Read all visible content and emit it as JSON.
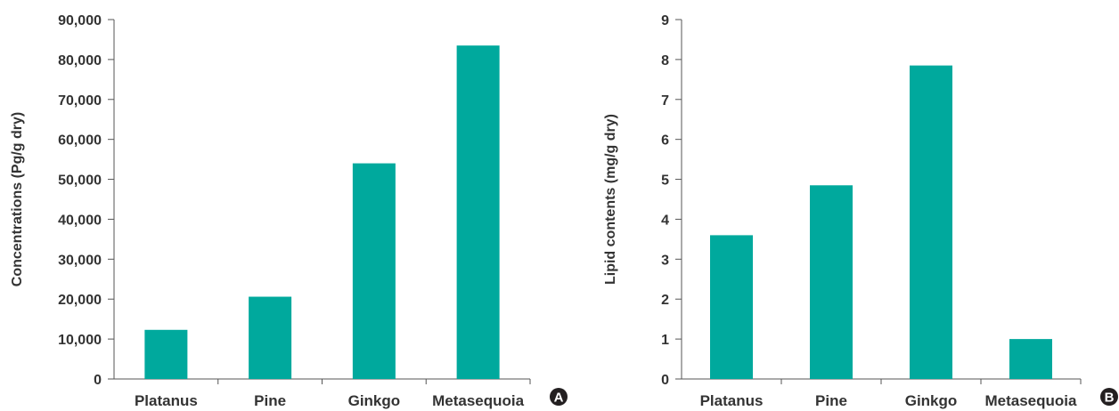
{
  "chart_data": [
    {
      "type": "bar",
      "panel_label": "A",
      "categories": [
        "Platanus",
        "Pine",
        "Ginkgo",
        "Metasequoia"
      ],
      "values": [
        12300,
        20600,
        54000,
        83500
      ],
      "ylabel": "Concentrations (Pg/g dry)",
      "ylim": [
        0,
        90000
      ],
      "yticks": [
        0,
        10000,
        20000,
        30000,
        40000,
        50000,
        60000,
        70000,
        80000,
        90000
      ],
      "ytick_labels": [
        "0",
        "10,000",
        "20,000",
        "30,000",
        "40,000",
        "50,000",
        "60,000",
        "70,000",
        "80,000",
        "90,000"
      ],
      "bar_color": "#00a99d",
      "grid": false
    },
    {
      "type": "bar",
      "panel_label": "B",
      "categories": [
        "Platanus",
        "Pine",
        "Ginkgo",
        "Metasequoia"
      ],
      "values": [
        3.6,
        4.85,
        7.85,
        1.0
      ],
      "ylabel": "Lipid contents (mg/g dry)",
      "ylim": [
        0,
        9
      ],
      "yticks": [
        0,
        1,
        2,
        3,
        4,
        5,
        6,
        7,
        8,
        9
      ],
      "ytick_labels": [
        "0",
        "1",
        "2",
        "3",
        "4",
        "5",
        "6",
        "7",
        "8",
        "9"
      ],
      "bar_color": "#00a99d",
      "grid": false
    }
  ]
}
